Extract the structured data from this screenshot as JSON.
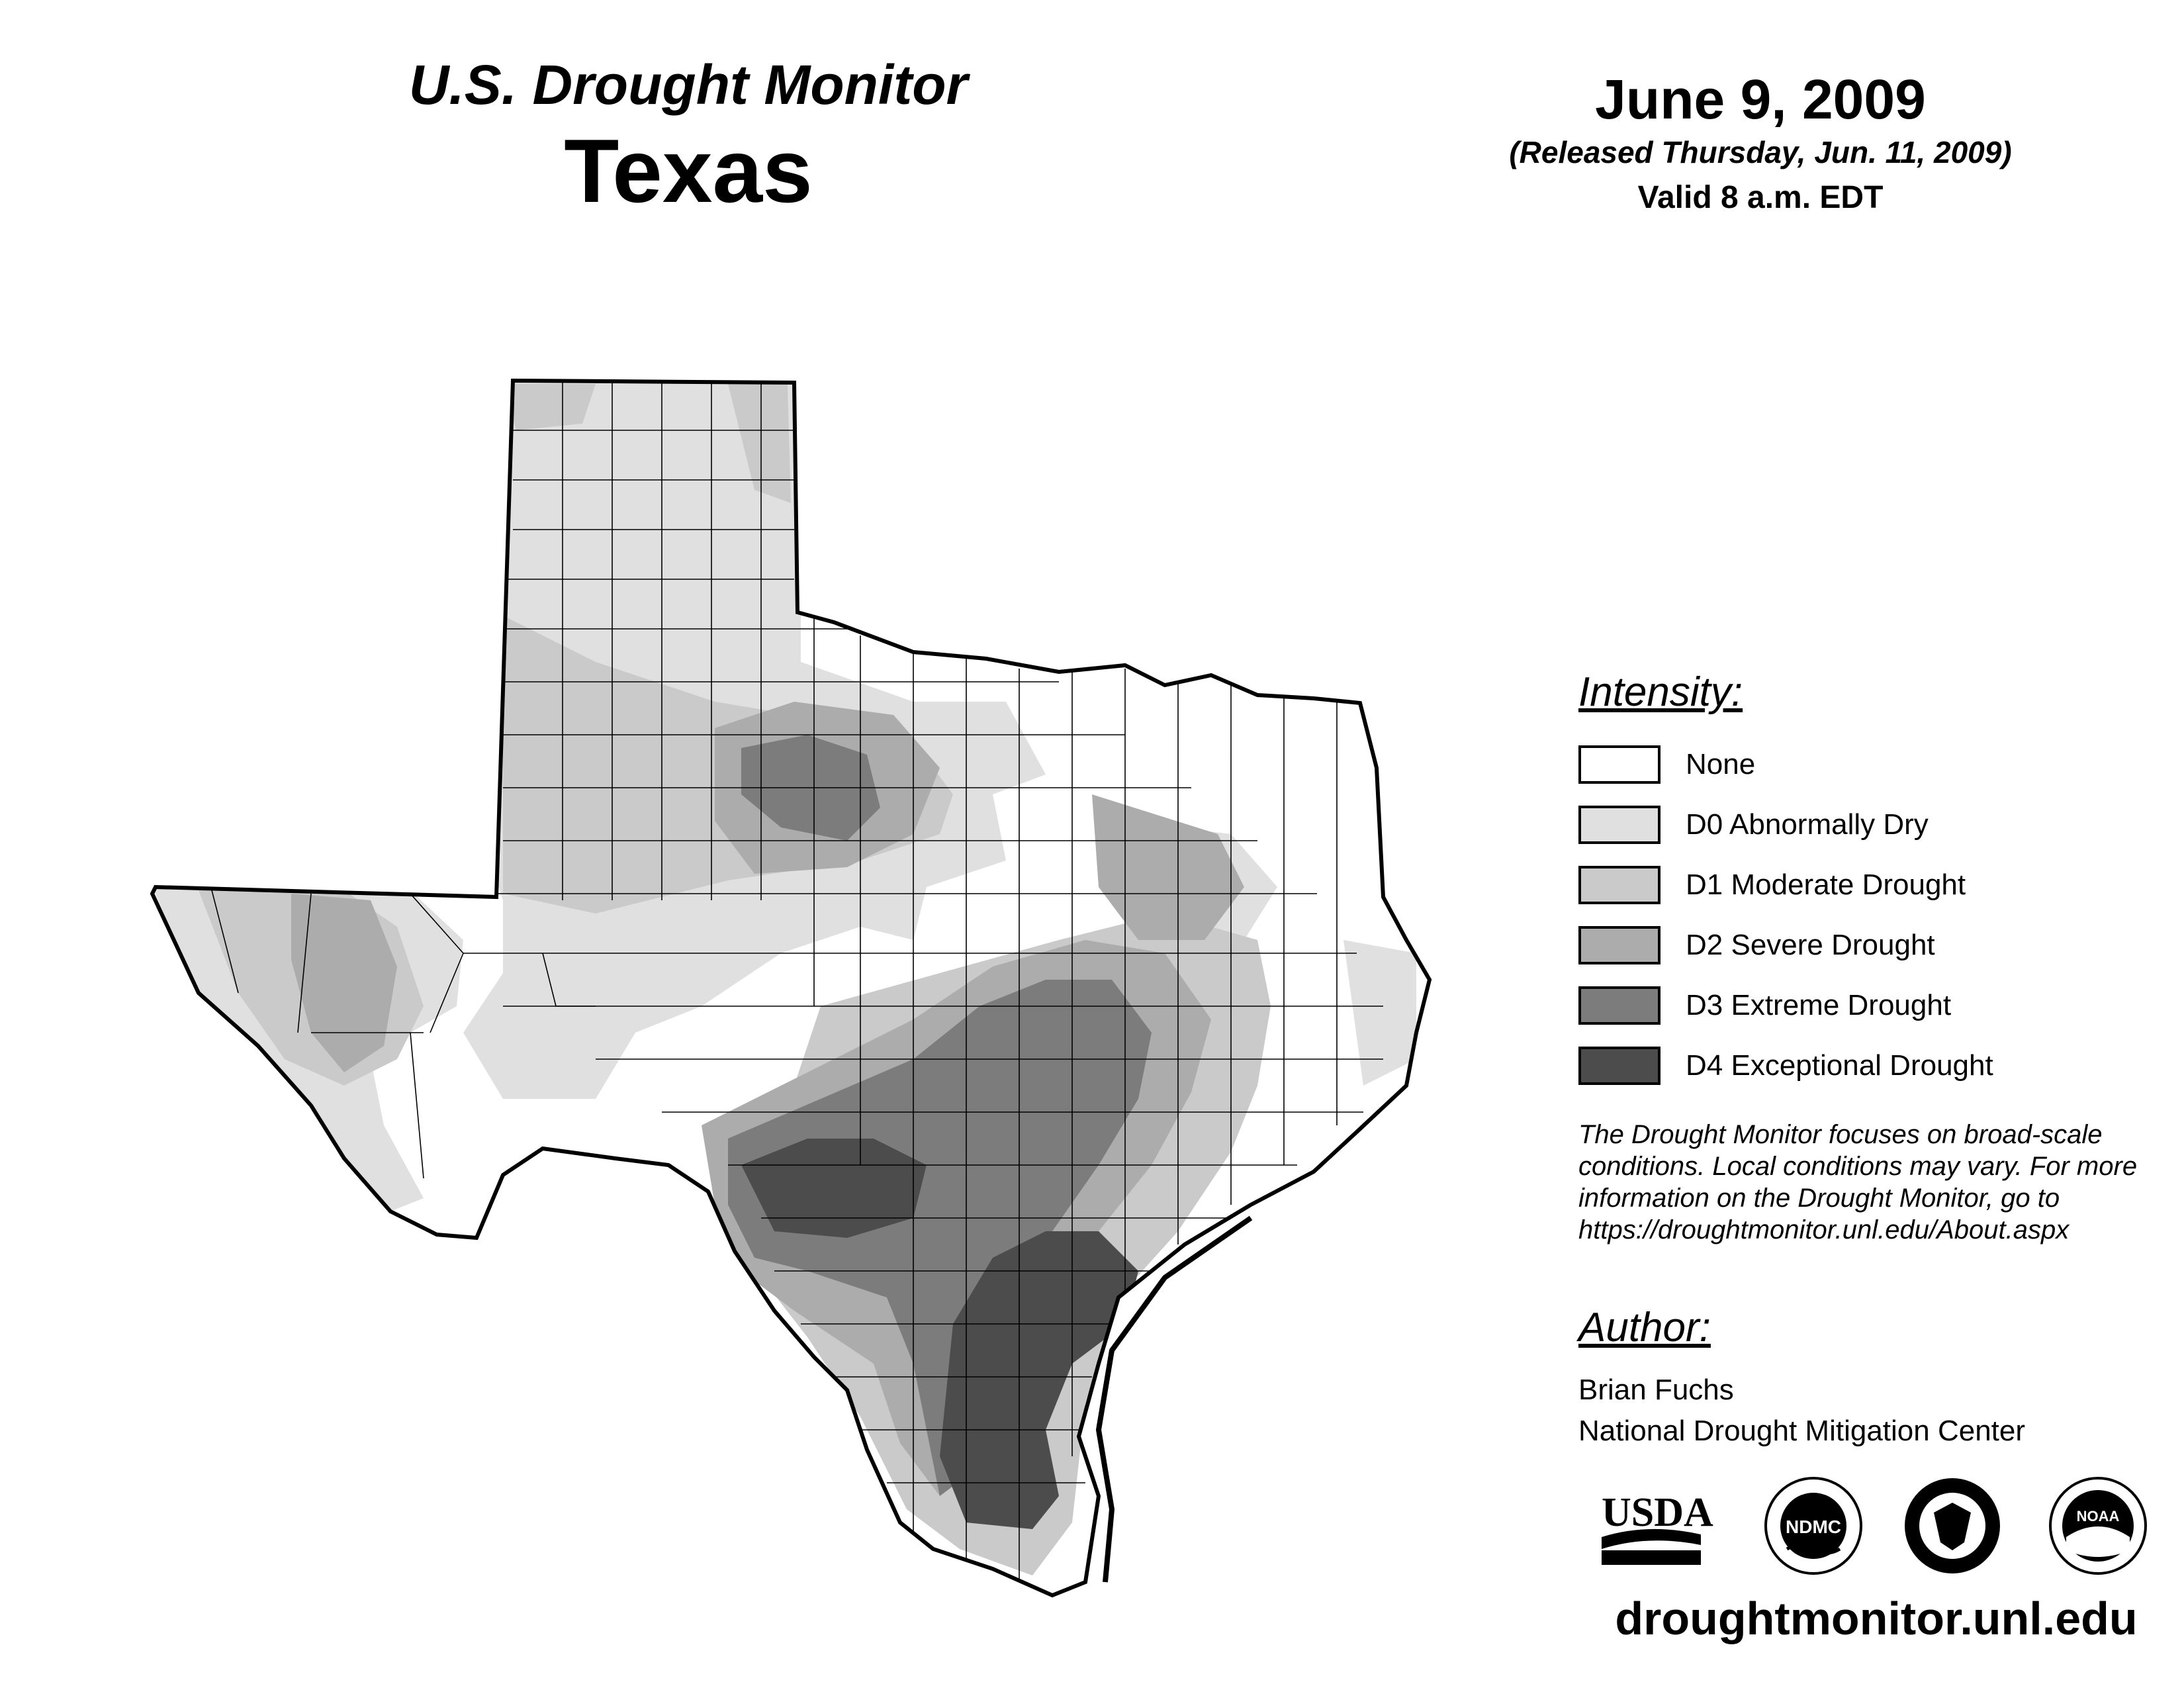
{
  "header": {
    "monitor_title": "U.S. Drought Monitor",
    "state": "Texas",
    "map_date": "June 9, 2009",
    "release": "(Released Thursday, Jun. 11, 2009)",
    "valid": "Valid 8 a.m. EDT"
  },
  "legend": {
    "heading": "Intensity:",
    "items": [
      {
        "label": "None",
        "color": "#ffffff"
      },
      {
        "label": "D0 Abnormally Dry",
        "color": "#e0e0e0"
      },
      {
        "label": "D1 Moderate Drought",
        "color": "#cacaca"
      },
      {
        "label": "D2 Severe Drought",
        "color": "#acacac"
      },
      {
        "label": "D3 Extreme Drought",
        "color": "#7c7c7c"
      },
      {
        "label": "D4 Exceptional Drought",
        "color": "#4c4c4c"
      }
    ]
  },
  "disclaimer": "The Drought Monitor focuses on broad-scale conditions. Local conditions may vary. For more information on the Drought Monitor, go to https://droughtmonitor.unl.edu/About.aspx",
  "author": {
    "heading": "Author:",
    "name": "Brian Fuchs",
    "org": "National Drought Mitigation Center"
  },
  "logos": {
    "usda": "USDA",
    "ndmc": "NDMC",
    "commerce": "commerce-seal",
    "noaa": "NOAA"
  },
  "site_url": "droughtmonitor.unl.edu"
}
